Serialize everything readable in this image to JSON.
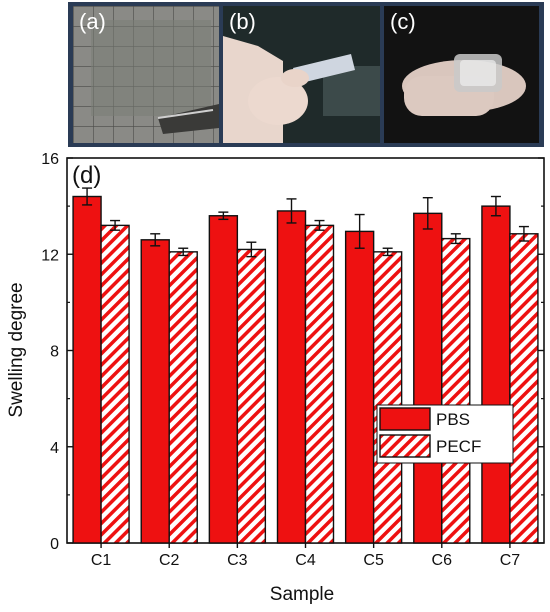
{
  "photos": {
    "a": "(a)",
    "b": "(b)",
    "c": "(c)"
  },
  "chart_data": {
    "type": "bar",
    "panel_label": "(d)",
    "categories": [
      "C1",
      "C2",
      "C3",
      "C4",
      "C5",
      "C6",
      "C7"
    ],
    "series": [
      {
        "name": "PBS",
        "values": [
          14.4,
          12.6,
          13.6,
          13.8,
          12.95,
          13.7,
          14.0
        ],
        "errors": [
          0.35,
          0.25,
          0.15,
          0.5,
          0.7,
          0.65,
          0.4
        ],
        "style": "solid"
      },
      {
        "name": "PECF",
        "values": [
          13.2,
          12.1,
          12.2,
          13.2,
          12.1,
          12.65,
          12.85
        ],
        "errors": [
          0.2,
          0.15,
          0.3,
          0.2,
          0.15,
          0.2,
          0.3
        ],
        "style": "hatched"
      }
    ],
    "xlabel": "Sample",
    "ylabel": "Swelling degree",
    "ylim": [
      0,
      16
    ],
    "yticks": [
      0,
      4,
      8,
      12,
      16
    ],
    "legend_position": "center-right",
    "colors": {
      "bar": "#ee1111",
      "edge": "#111111",
      "hatch": "#ee1111"
    }
  }
}
